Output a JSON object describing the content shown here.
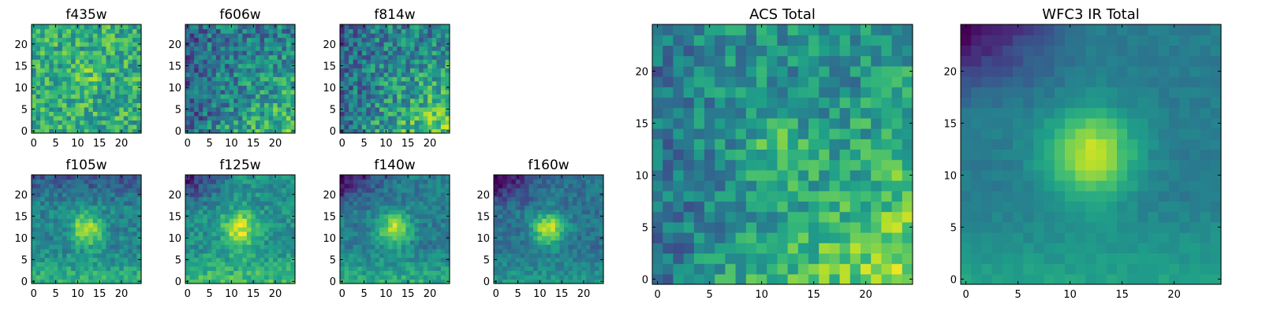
{
  "chart_data": [
    {
      "type": "heatmap",
      "title": "f435w",
      "x_range": [
        -0.5,
        24.5
      ],
      "y_range": [
        -0.5,
        24.5
      ],
      "x_ticks": [
        "0",
        "5",
        "10",
        "15",
        "20"
      ],
      "y_ticks": [
        "0",
        "5",
        "10",
        "15",
        "20"
      ],
      "grid": false,
      "center": [
        12,
        12
      ],
      "peak_strength": 0.12,
      "peak_width": 2.2,
      "gradient": 0.0,
      "gradient_dir": "none",
      "noise": 0.42,
      "dark_cluster": "none",
      "base": 0.62,
      "colormap": "viridis"
    },
    {
      "type": "heatmap",
      "title": "f606w",
      "x_range": [
        -0.5,
        24.5
      ],
      "y_range": [
        -0.5,
        24.5
      ],
      "x_ticks": [
        "0",
        "5",
        "10",
        "15",
        "20"
      ],
      "y_ticks": [
        "0",
        "5",
        "10",
        "15",
        "20"
      ],
      "grid": false,
      "center": [
        12,
        12
      ],
      "peak_strength": 0.05,
      "peak_width": 2.2,
      "gradient": 0.3,
      "gradient_dir": "bottom-right",
      "noise": 0.45,
      "dark_cluster": "left",
      "base": 0.42,
      "colormap": "viridis"
    },
    {
      "type": "heatmap",
      "title": "f814w",
      "x_range": [
        -0.5,
        24.5
      ],
      "y_range": [
        -0.5,
        24.5
      ],
      "x_ticks": [
        "0",
        "5",
        "10",
        "15",
        "20"
      ],
      "y_ticks": [
        "0",
        "5",
        "10",
        "15",
        "20"
      ],
      "grid": false,
      "center": [
        12,
        12
      ],
      "peak_strength": 0.12,
      "peak_width": 2.2,
      "gradient": 0.35,
      "gradient_dir": "bottom-right",
      "noise": 0.45,
      "dark_cluster": "left",
      "base": 0.45,
      "colormap": "viridis"
    },
    {
      "type": "heatmap",
      "title": "f105w",
      "x_range": [
        -0.5,
        24.5
      ],
      "y_range": [
        -0.5,
        24.5
      ],
      "x_ticks": [
        "0",
        "5",
        "10",
        "15",
        "20"
      ],
      "y_ticks": [
        "0",
        "5",
        "10",
        "15",
        "20"
      ],
      "grid": false,
      "center": [
        12,
        12
      ],
      "peak_strength": 0.45,
      "peak_width": 2.6,
      "gradient": 0.2,
      "gradient_dir": "bottom",
      "noise": 0.25,
      "dark_cluster": "top",
      "base": 0.45,
      "colormap": "viridis"
    },
    {
      "type": "heatmap",
      "title": "f125w",
      "x_range": [
        -0.5,
        24.5
      ],
      "y_range": [
        -0.5,
        24.5
      ],
      "x_ticks": [
        "0",
        "5",
        "10",
        "15",
        "20"
      ],
      "y_ticks": [
        "0",
        "5",
        "10",
        "15",
        "20"
      ],
      "grid": false,
      "center": [
        12,
        12
      ],
      "peak_strength": 0.45,
      "peak_width": 2.8,
      "gradient": 0.2,
      "gradient_dir": "bottom",
      "noise": 0.25,
      "dark_cluster": "top-left",
      "base": 0.5,
      "colormap": "viridis"
    },
    {
      "type": "heatmap",
      "title": "f140w",
      "x_range": [
        -0.5,
        24.5
      ],
      "y_range": [
        -0.5,
        24.5
      ],
      "x_ticks": [
        "0",
        "5",
        "10",
        "15",
        "20"
      ],
      "y_ticks": [
        "0",
        "5",
        "10",
        "15",
        "20"
      ],
      "grid": false,
      "center": [
        12,
        12
      ],
      "peak_strength": 0.5,
      "peak_width": 2.6,
      "gradient": 0.2,
      "gradient_dir": "bottom",
      "noise": 0.22,
      "dark_cluster": "top-left",
      "base": 0.42,
      "colormap": "viridis"
    },
    {
      "type": "heatmap",
      "title": "f160w",
      "x_range": [
        -0.5,
        24.5
      ],
      "y_range": [
        -0.5,
        24.5
      ],
      "x_ticks": [
        "0",
        "5",
        "10",
        "15",
        "20"
      ],
      "y_ticks": [
        "0",
        "5",
        "10",
        "15",
        "20"
      ],
      "grid": false,
      "center": [
        12,
        12
      ],
      "peak_strength": 0.55,
      "peak_width": 2.6,
      "gradient": 0.15,
      "gradient_dir": "bottom",
      "noise": 0.2,
      "dark_cluster": "top-left",
      "base": 0.38,
      "colormap": "viridis"
    },
    {
      "type": "heatmap",
      "title": "ACS Total",
      "x_range": [
        -0.5,
        24.5
      ],
      "y_range": [
        -0.5,
        24.5
      ],
      "x_ticks": [
        "0",
        "5",
        "10",
        "15",
        "20"
      ],
      "y_ticks": [
        "0",
        "5",
        "10",
        "15",
        "20"
      ],
      "grid": false,
      "center": [
        12,
        12
      ],
      "peak_strength": 0.25,
      "peak_width": 2.0,
      "gradient": 0.35,
      "gradient_dir": "bottom-right",
      "noise": 0.35,
      "dark_cluster": "left",
      "base": 0.5,
      "colormap": "viridis"
    },
    {
      "type": "heatmap",
      "title": "WFC3 IR Total",
      "x_range": [
        -0.5,
        24.5
      ],
      "y_range": [
        -0.5,
        24.5
      ],
      "x_ticks": [
        "0",
        "5",
        "10",
        "15",
        "20"
      ],
      "y_ticks": [
        "0",
        "5",
        "10",
        "15",
        "20"
      ],
      "grid": false,
      "center": [
        12,
        12
      ],
      "peak_strength": 0.5,
      "peak_width": 3.0,
      "gradient": 0.15,
      "gradient_dir": "bottom",
      "noise": 0.08,
      "dark_cluster": "top-left",
      "base": 0.42,
      "colormap": "viridis"
    }
  ]
}
